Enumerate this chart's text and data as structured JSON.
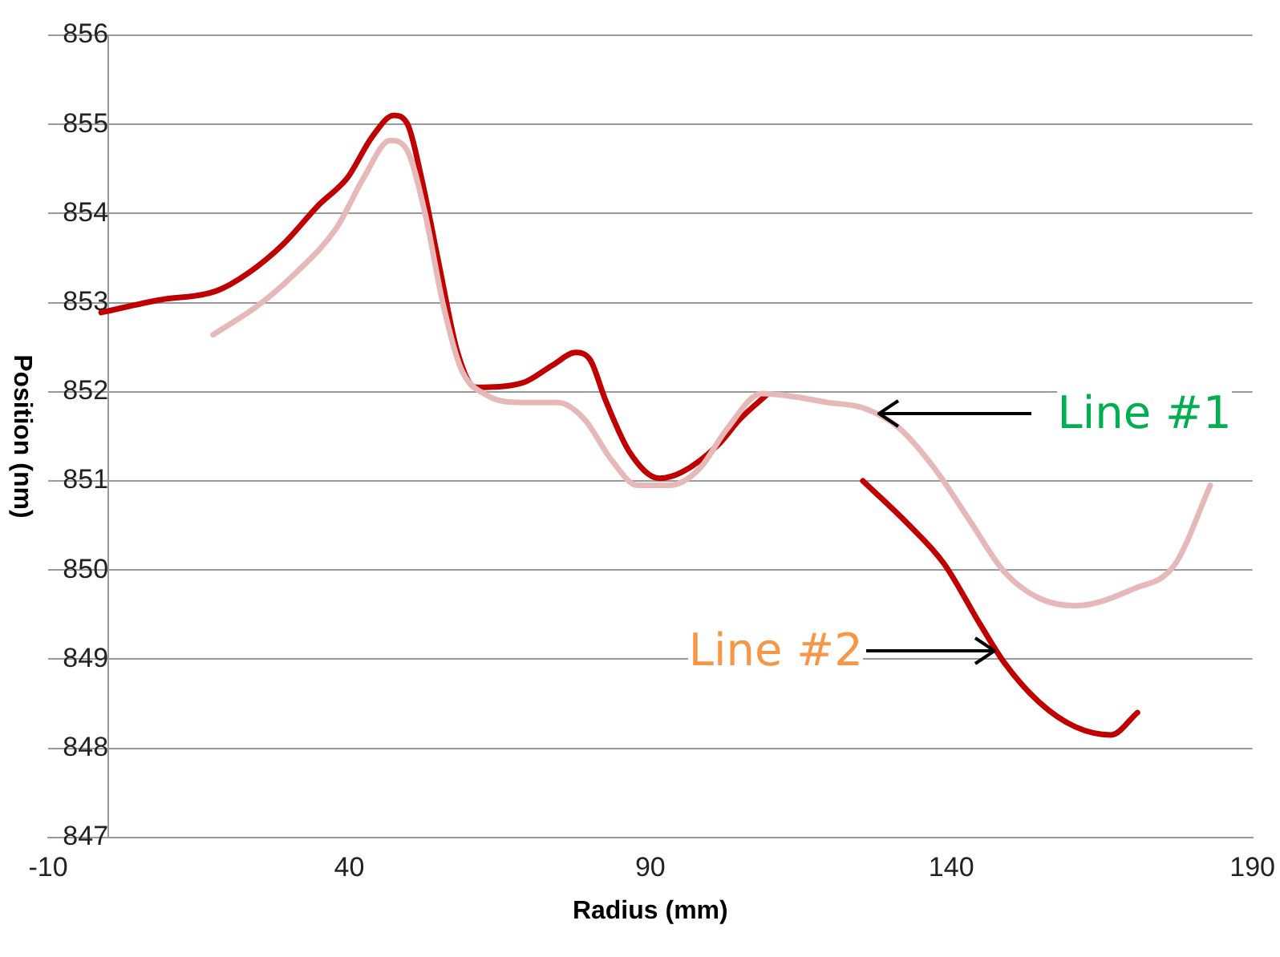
{
  "chart_data": {
    "type": "line",
    "xlabel": "Radius (mm)",
    "ylabel": "Position (nm)",
    "xlim": [
      -10,
      190
    ],
    "xticks": [
      -10,
      40,
      90,
      140,
      190
    ],
    "ylim": [
      847,
      856
    ],
    "yticks": [
      847,
      848,
      849,
      850,
      851,
      852,
      853,
      854,
      855,
      856
    ],
    "grid": "y",
    "legend": false,
    "marker": "none",
    "line_style": "solid",
    "series": [
      {
        "color": "#e6b9b8",
        "x": [
          17.4,
          24.7,
          30.6,
          37.9,
          42.4,
          46.8,
          49.7,
          52.6,
          55.6,
          58.5,
          62.9,
          68.8,
          74.7,
          79.1,
          83.5,
          87.9,
          93.2,
          98.2,
          102.6,
          108.5,
          114.4,
          119.4,
          125.3,
          131.2,
          137.1,
          143,
          148.8,
          154.7,
          160.6,
          170.3,
          177.1,
          183
        ],
        "values": [
          852.64,
          852.96,
          853.3,
          853.84,
          854.4,
          854.82,
          854.7,
          854.0,
          852.98,
          852.27,
          851.96,
          851.88,
          851.88,
          851.69,
          851.24,
          850.95,
          850.95,
          851.14,
          851.57,
          851.98,
          851.94,
          851.88,
          851.82,
          851.6,
          851.15,
          850.56,
          849.98,
          849.68,
          849.6,
          849.79,
          850.06,
          850.95
        ]
      },
      {
        "color": "#c00000",
        "x": [
          -1.2,
          8.5,
          17.9,
          23.2,
          29.1,
          35,
          39.7,
          43.8,
          47.4,
          49.7,
          52,
          55,
          58,
          61,
          68.8,
          73.8,
          77.6,
          80,
          82.6,
          86.5,
          91.5,
          95.3,
          101.2,
          105,
          109.4
        ],
        "values": [
          852.89,
          853.03,
          853.13,
          853.33,
          853.66,
          854.1,
          854.4,
          854.86,
          855.1,
          855.0,
          854.4,
          853.4,
          852.44,
          852.05,
          852.1,
          852.3,
          852.44,
          852.36,
          851.9,
          851.33,
          851.03,
          851.1,
          851.4,
          851.7,
          851.97
        ]
      },
      {
        "color": "#c00000",
        "x": [
          125.3,
          132.9,
          138.8,
          144.7,
          148.8,
          154.7,
          160.6,
          166.5,
          170.9
        ],
        "values": [
          851.0,
          850.51,
          850.07,
          849.4,
          848.96,
          848.51,
          848.24,
          848.15,
          848.4
        ]
      }
    ],
    "annotations": [
      {
        "text": "Line #1",
        "x": 127,
        "y": 851.76
      },
      {
        "text": "Line #2",
        "x": 147.4,
        "y": 849.1
      }
    ]
  }
}
